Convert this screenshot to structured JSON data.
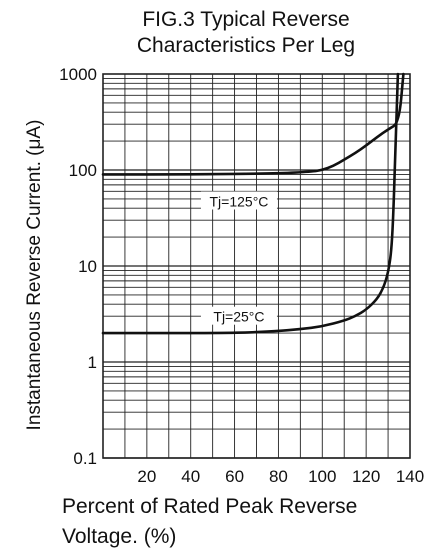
{
  "chart_data": {
    "type": "line",
    "title": "FIG.3 Typical Reverse Characteristics Per Leg",
    "title_lines": [
      "FIG.3 Typical Reverse",
      "Characteristics Per Leg"
    ],
    "xlabel": "Percent of Rated Peak Reverse Voltage. (%)",
    "xlabel_lines": [
      "Percent of Rated Peak Reverse",
      "Voltage. (%)"
    ],
    "ylabel": "Instantaneous Reverse Current. (μA)",
    "xlim": [
      0,
      140
    ],
    "ylim": [
      0.1,
      1000
    ],
    "yscale": "log",
    "grid": true,
    "x_ticks": [
      20,
      40,
      60,
      80,
      100,
      120,
      140
    ],
    "y_ticks": [
      "0.1",
      "1",
      "10",
      "100",
      "1000"
    ],
    "y_tick_values": [
      0.1,
      1,
      10,
      100,
      1000
    ],
    "series": [
      {
        "name": "Tj=125°C",
        "x": [
          0,
          40,
          80,
          95,
          100,
          105,
          110,
          115,
          120,
          125,
          130,
          135,
          137
        ],
        "y": [
          90,
          90,
          92,
          96,
          100,
          110,
          128,
          150,
          180,
          220,
          265,
          310,
          1000
        ]
      },
      {
        "name": "Tj=25°C",
        "x": [
          0,
          60,
          80,
          90,
          100,
          110,
          115,
          120,
          125,
          128,
          130,
          131.5,
          132.5,
          133.5,
          134.5
        ],
        "y": [
          2.0,
          2.0,
          2.1,
          2.2,
          2.35,
          2.7,
          3.0,
          3.5,
          4.5,
          6.0,
          8.5,
          14,
          40,
          200,
          1000
        ]
      }
    ]
  },
  "colors": {
    "grid": "#222222",
    "curve": "#111111",
    "background": "#ffffff"
  }
}
